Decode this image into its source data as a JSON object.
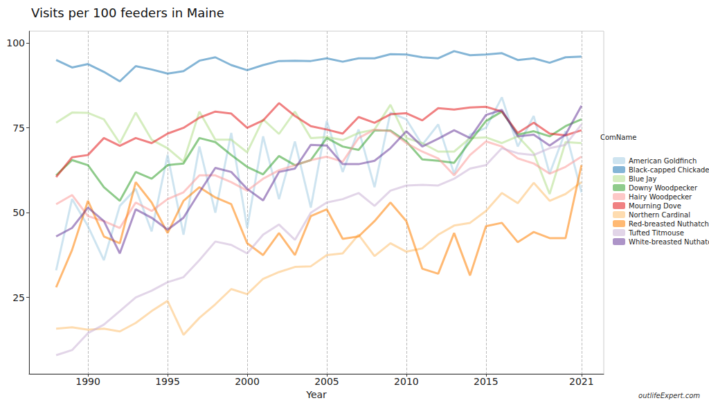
{
  "chart_data": {
    "type": "line",
    "title": "Visits per 100 feeders in Maine",
    "x_label": "Year",
    "legend_title": "ComName",
    "caption": "outlifeExpert.com",
    "x": [
      1988,
      1989,
      1990,
      1991,
      1992,
      1993,
      1994,
      1995,
      1996,
      1997,
      1998,
      1999,
      2000,
      2001,
      2002,
      2003,
      2004,
      2005,
      2006,
      2007,
      2008,
      2009,
      2010,
      2011,
      2012,
      2013,
      2014,
      2015,
      2016,
      2017,
      2018,
      2019,
      2020,
      2021
    ],
    "xlim": [
      1986.3,
      2022.4
    ],
    "xticks": [
      1990,
      1995,
      2000,
      2005,
      2010,
      2015,
      2021
    ],
    "ylim": [
      2.5,
      103.5
    ],
    "yticks": [
      25,
      50,
      75,
      100
    ],
    "grid": true,
    "legend": "right",
    "series": [
      {
        "name": "American Goldfinch",
        "color": "#a6cee3",
        "values": [
          33,
          54,
          46,
          36,
          52,
          57,
          44.5,
          67,
          43.5,
          69.5,
          50,
          73.5,
          45.5,
          72.5,
          54,
          71,
          51.5,
          77,
          62,
          74.5,
          57.5,
          79.5,
          77.5,
          70,
          76,
          61.5,
          73,
          75,
          84,
          69.5,
          78.5,
          61.5,
          74,
          56
        ]
      },
      {
        "name": "Black-capped Chickadee",
        "color": "#1f78b4",
        "values": [
          95,
          92.8,
          93.8,
          91.5,
          88.7,
          93.2,
          92.2,
          91,
          91.7,
          94.8,
          95.8,
          93.5,
          92,
          93.5,
          94.7,
          94.8,
          94.7,
          95.5,
          94.5,
          95.5,
          95.5,
          96.7,
          96.6,
          95.8,
          95.5,
          97.6,
          96.4,
          96.6,
          97,
          95,
          95.5,
          94.2,
          95.8,
          96
        ]
      },
      {
        "name": "Blue Jay",
        "color": "#b2df8a",
        "values": [
          76.5,
          79.5,
          79.4,
          77.5,
          70.5,
          79.5,
          71.5,
          69,
          65,
          79.8,
          71.5,
          71.5,
          67.8,
          77.5,
          73.2,
          79.8,
          72,
          72.3,
          71.4,
          73.5,
          74.5,
          81.8,
          72,
          70.5,
          68,
          68,
          72,
          72.2,
          70.5,
          72.5,
          67.5,
          55.5,
          70.8,
          70.5
        ]
      },
      {
        "name": "Downy Woodpecker",
        "color": "#33a02c",
        "values": [
          61,
          65.5,
          64,
          57.5,
          53.5,
          62,
          60,
          64,
          64.5,
          72,
          70.8,
          67,
          63.5,
          61.3,
          66.7,
          64,
          65.5,
          72,
          69.5,
          68.5,
          74.2,
          74.2,
          71,
          65.7,
          65.3,
          64.7,
          71,
          77,
          79.8,
          73,
          74,
          72.5,
          75.5,
          77.5
        ]
      },
      {
        "name": "Hairy Woodpecker",
        "color": "#fb9a99",
        "values": [
          52.5,
          55.2,
          49,
          47.5,
          45.5,
          53,
          50.5,
          54,
          56,
          61,
          61,
          59,
          56.5,
          60,
          62.5,
          64,
          65.5,
          66.5,
          65,
          72,
          74.5,
          74,
          70.5,
          68,
          66,
          61,
          67,
          71,
          69.5,
          66,
          64.5,
          61.5,
          63.5,
          66.5
        ]
      },
      {
        "name": "Mourning Dove",
        "color": "#e31a1c",
        "values": [
          60.5,
          66.3,
          67,
          72,
          69.7,
          72,
          70.5,
          73.3,
          75,
          78,
          79.8,
          79.2,
          75,
          77.2,
          82.3,
          78.5,
          75.5,
          74.5,
          73.3,
          78.2,
          76.5,
          79,
          79.3,
          77.2,
          80.8,
          80.4,
          81,
          81.2,
          79.8,
          73.5,
          76.5,
          73.3,
          72.8,
          74.3
        ]
      },
      {
        "name": "Northern Cardinal",
        "color": "#fdbf6f",
        "values": [
          15.8,
          16.2,
          15.5,
          15.8,
          15,
          17.5,
          21,
          24,
          14,
          19,
          23,
          27.5,
          26,
          30.5,
          32.5,
          34,
          34.2,
          37.5,
          38,
          43.5,
          37.2,
          41,
          38.5,
          39.5,
          43.5,
          46.2,
          47,
          50.5,
          55.8,
          52.8,
          58.8,
          53.5,
          55.5,
          59
        ]
      },
      {
        "name": "Red-breasted Nuthatch",
        "color": "#ff7f00",
        "values": [
          28,
          39,
          53.5,
          43,
          41,
          59,
          53,
          44,
          53.5,
          57.5,
          54.5,
          52.5,
          41,
          37.5,
          44,
          37.5,
          49,
          51,
          42.3,
          43,
          47.5,
          53,
          47.5,
          33.5,
          32,
          44,
          31.5,
          46,
          47,
          41.3,
          44.3,
          42.5,
          42.5,
          64
        ]
      },
      {
        "name": "Tufted Titmouse",
        "color": "#cab2d6",
        "values": [
          8,
          9.5,
          14.5,
          17,
          21,
          25,
          27,
          29.5,
          31,
          36,
          41.5,
          40.5,
          38,
          43.5,
          46.5,
          42,
          50,
          53,
          54,
          55.8,
          52,
          56.5,
          58,
          58.2,
          58,
          60,
          63,
          64,
          69,
          67.5,
          67,
          69,
          70,
          76
        ]
      },
      {
        "name": "White-breasted Nuthatch",
        "color": "#6a3d9a",
        "values": [
          43,
          45.5,
          51.5,
          47.5,
          38,
          51,
          48.5,
          45,
          48.5,
          56,
          63.2,
          62,
          57,
          53.6,
          62,
          63,
          70,
          69.8,
          64.3,
          64.3,
          65.3,
          69,
          74,
          69.5,
          71.8,
          74.3,
          72,
          78.8,
          80.3,
          72.5,
          73,
          69.8,
          73,
          81.5
        ]
      }
    ]
  }
}
